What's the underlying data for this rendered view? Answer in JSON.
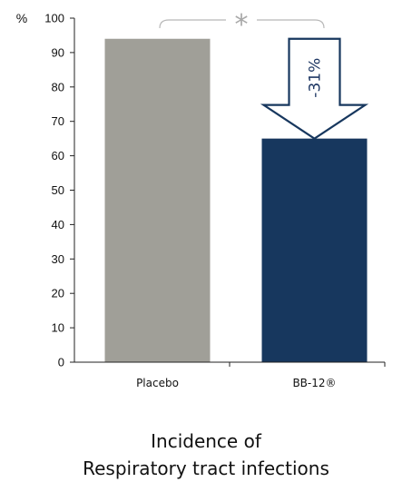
{
  "chart_data": {
    "type": "bar",
    "categories": [
      "Placebo",
      "BB-12®"
    ],
    "values": [
      94,
      65
    ],
    "title_lines": [
      "Incidence of",
      "Respiratory tract infections"
    ],
    "xlabel": "",
    "ylabel": "%",
    "ylim": [
      0,
      100
    ],
    "yticks": [
      0,
      10,
      20,
      30,
      40,
      50,
      60,
      70,
      80,
      90,
      100
    ],
    "grid": false,
    "bar_colors": [
      "#a09f98",
      "#17375e"
    ],
    "annotations": {
      "difference_label": "-31%",
      "significance_marker": "*",
      "arrow_color": "#17375e",
      "bracket_color": "#b8b8b8"
    }
  }
}
